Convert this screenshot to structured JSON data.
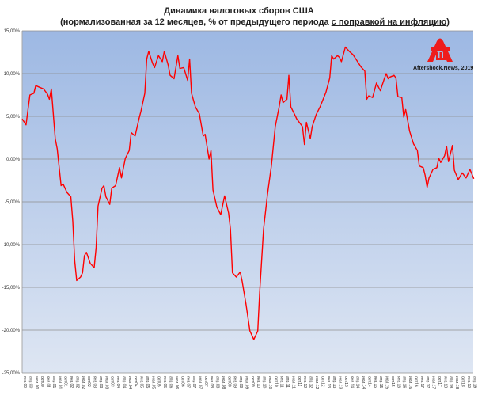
{
  "chart_data": {
    "type": "line",
    "title": "Динамика налоговых сборов США",
    "subtitle_prefix": "(нормализованная за 12 месяцев, % от предыдущего периода ",
    "subtitle_underlined": "с поправкой на инфляцию",
    "subtitle_suffix": ")",
    "ylim": [
      -25,
      15
    ],
    "y_ticks": [
      15,
      10,
      5,
      0,
      -5,
      -10,
      -15,
      -20,
      -25
    ],
    "y_tick_labels": [
      "15,00%",
      "10,00%",
      "5,00%",
      "0,00%",
      "-5,00%",
      "-10,00%",
      "-15,00%",
      "-20,00%",
      "-25,00%"
    ],
    "grid": true,
    "line_color": "#ff0000",
    "background_gradient": [
      "#9db8e3",
      "#dee6f3"
    ],
    "x_tick_labels": [
      "янв.00",
      "апр.00",
      "июл.00",
      "окт.00",
      "янв.01",
      "апр.01",
      "июл.01",
      "окт.01",
      "янв.02",
      "апр.02",
      "июл.02",
      "окт.02",
      "янв.03",
      "апр.03",
      "июл.03",
      "окт.03",
      "янв.04",
      "апр.04",
      "июл.04",
      "окт.04",
      "янв.05",
      "апр.05",
      "июл.05",
      "окт.05",
      "янв.06",
      "апр.06",
      "июл.06",
      "окт.06",
      "янв.07",
      "апр.07",
      "июл.07",
      "окт.07",
      "янв.08",
      "апр.08",
      "июл.08",
      "окт.08",
      "янв.09",
      "апр.09",
      "июл.09",
      "окт.09",
      "янв.10",
      "апр.10",
      "июл.10",
      "окт.10",
      "янв.11",
      "апр.11",
      "июл.11",
      "окт.11",
      "янв.12",
      "апр.12",
      "июл.12",
      "окт.12",
      "янв.13",
      "апр.13",
      "июл.13",
      "окт.13",
      "янв.14",
      "апр.14",
      "июл.14",
      "окт.14",
      "янв.15",
      "апр.15",
      "июл.15",
      "окт.15",
      "янв.16",
      "апр.16",
      "июл.16",
      "окт.16",
      "янв.17",
      "апр.17",
      "июл.17",
      "окт.17",
      "янв.18",
      "апр.18",
      "июл.18",
      "окт.18",
      "янв.19",
      "апр.19"
    ],
    "x": [
      "2000-01",
      "2000-03",
      "2000-05",
      "2000-07",
      "2000-08",
      "2000-10",
      "2000-12",
      "2001-02",
      "2001-03",
      "2001-04",
      "2001-06",
      "2001-07",
      "2001-09",
      "2001-10",
      "2001-12",
      "2002-02",
      "2002-03",
      "2002-04",
      "2002-05",
      "2002-07",
      "2002-08",
      "2002-09",
      "2002-10",
      "2002-12",
      "2003-02",
      "2003-03",
      "2003-04",
      "2003-06",
      "2003-07",
      "2003-08",
      "2003-10",
      "2003-11",
      "2004-01",
      "2004-03",
      "2004-04",
      "2004-06",
      "2004-08",
      "2004-09",
      "2004-11",
      "2005-01",
      "2005-02",
      "2005-04",
      "2005-05",
      "2005-06",
      "2005-08",
      "2005-09",
      "2005-11",
      "2006-01",
      "2006-02",
      "2006-04",
      "2006-05",
      "2006-07",
      "2006-09",
      "2006-10",
      "2006-12",
      "2007-02",
      "2007-03",
      "2007-04",
      "2007-06",
      "2007-08",
      "2007-10",
      "2007-11",
      "2008-01",
      "2008-02",
      "2008-03",
      "2008-05",
      "2008-07",
      "2008-09",
      "2008-11",
      "2008-12",
      "2009-01",
      "2009-03",
      "2009-05",
      "2009-06",
      "2009-08",
      "2009-10",
      "2009-12",
      "2010-02",
      "2010-03",
      "2010-05",
      "2010-07",
      "2010-09",
      "2010-11",
      "2011-01",
      "2011-02",
      "2011-03",
      "2011-05",
      "2011-06",
      "2011-07",
      "2011-09",
      "2011-10",
      "2012-01",
      "2012-02",
      "2012-03",
      "2012-05",
      "2012-06",
      "2012-08",
      "2012-10",
      "2013-01",
      "2013-03",
      "2013-04",
      "2013-05",
      "2013-07",
      "2013-08",
      "2013-09",
      "2013-11",
      "2014-01",
      "2014-03",
      "2014-05",
      "2014-07",
      "2014-09",
      "2014-10",
      "2014-11",
      "2015-01",
      "2015-03",
      "2015-05",
      "2015-07",
      "2015-08",
      "2015-09",
      "2015-10",
      "2015-12",
      "2016-01",
      "2016-02",
      "2016-04",
      "2016-05",
      "2016-06",
      "2016-08",
      "2016-10",
      "2016-12",
      "2017-01",
      "2017-03",
      "2017-04",
      "2017-05",
      "2017-06",
      "2017-08",
      "2017-10",
      "2017-11",
      "2017-12",
      "2018-02",
      "2018-03",
      "2018-04",
      "2018-06",
      "2018-07",
      "2018-09",
      "2018-11",
      "2019-01",
      "2019-03",
      "2019-05"
    ],
    "y": [
      4.7,
      4.0,
      7.5,
      7.7,
      8.6,
      8.4,
      8.2,
      7.6,
      7.0,
      8.2,
      2.4,
      1.2,
      -3.1,
      -2.9,
      -3.9,
      -4.4,
      -7.3,
      -11.9,
      -14.2,
      -13.8,
      -13.3,
      -11.3,
      -10.9,
      -12.2,
      -12.7,
      -10.3,
      -5.5,
      -3.4,
      -3.1,
      -4.4,
      -5.3,
      -3.4,
      -3.1,
      -1.0,
      -2.2,
      0.1,
      1.0,
      3.1,
      2.7,
      4.7,
      5.6,
      7.7,
      11.7,
      12.6,
      11.2,
      10.7,
      12.1,
      11.4,
      12.6,
      11.0,
      9.8,
      9.4,
      12.1,
      10.6,
      10.7,
      9.2,
      11.7,
      7.7,
      6.1,
      5.3,
      2.7,
      2.9,
      0.0,
      1.0,
      -3.6,
      -5.6,
      -6.5,
      -4.3,
      -6.3,
      -8.2,
      -13.3,
      -13.8,
      -13.2,
      -14.3,
      -17.0,
      -20.1,
      -21.1,
      -20.1,
      -15.6,
      -8.2,
      -4.1,
      -0.8,
      3.8,
      6.1,
      7.5,
      6.6,
      7.0,
      9.8,
      6.1,
      5.2,
      4.7,
      3.8,
      1.7,
      4.3,
      2.4,
      3.8,
      5.2,
      6.1,
      7.8,
      9.5,
      12.1,
      11.7,
      12.1,
      11.9,
      11.4,
      13.1,
      12.6,
      12.2,
      11.5,
      10.8,
      10.3,
      7.0,
      7.4,
      7.2,
      8.9,
      8.0,
      9.4,
      10.0,
      9.4,
      9.6,
      9.8,
      9.5,
      7.3,
      7.2,
      4.9,
      5.8,
      3.3,
      1.8,
      1.0,
      -0.8,
      -1.0,
      -1.9,
      -3.3,
      -2.2,
      -1.2,
      -1.0,
      0.1,
      -0.4,
      0.4,
      1.5,
      -0.3,
      1.6,
      -1.3,
      -2.4,
      -1.6,
      -2.2,
      -1.2,
      -2.3
    ]
  },
  "watermark": {
    "text": "Aftershock.News, 2019",
    "logo_color": "#ee1c1c"
  }
}
